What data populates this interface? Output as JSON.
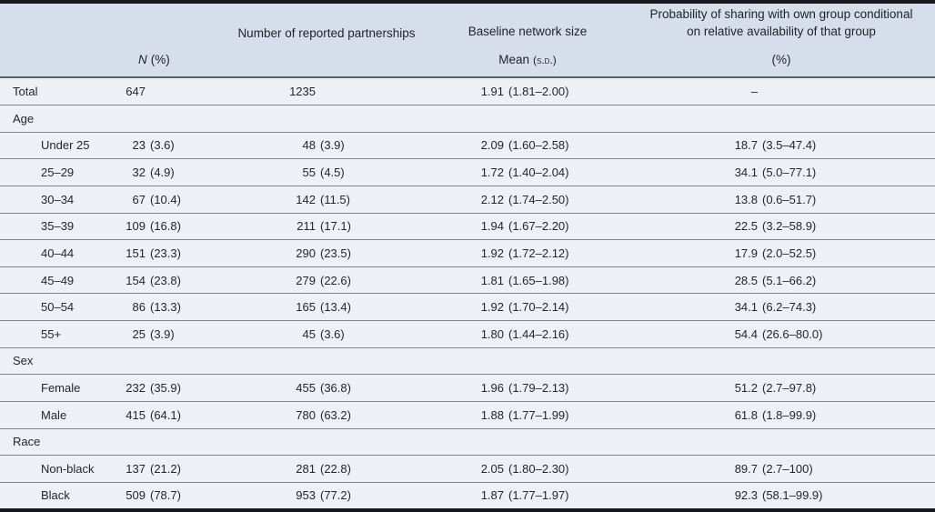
{
  "table": {
    "colors": {
      "header_bg": "#d7deeb",
      "body_bg": "#edf0f5",
      "heavy_rule": "#15171c",
      "row_rule": "#7c8590"
    },
    "header": {
      "col_n": {
        "label": "N",
        "units": "(%)"
      },
      "col_partnerships": {
        "line1": "Number of reported partnerships"
      },
      "col_network": {
        "line1": "Baseline network size",
        "mean_label": "Mean",
        "sd_label": "(s.d.)"
      },
      "col_probability": {
        "line1": "Probability of sharing with own group conditional",
        "line2": "on relative availability of that group",
        "units": "(%)"
      }
    },
    "rows": [
      {
        "type": "data",
        "indent": false,
        "label": "Total",
        "n": "647",
        "n_pct": "",
        "partnerships": "1235",
        "partnerships_pct": "",
        "mean": "1.91",
        "mean_ci": "(1.81–2.00)",
        "prob": "–",
        "prob_ci": ""
      },
      {
        "type": "section",
        "label": "Age"
      },
      {
        "type": "data",
        "indent": true,
        "label": "Under 25",
        "n": "23",
        "n_pct": "(3.6)",
        "partnerships": "48",
        "partnerships_pct": "(3.9)",
        "mean": "2.09",
        "mean_ci": "(1.60–2.58)",
        "prob": "18.7",
        "prob_ci": "(3.5–47.4)"
      },
      {
        "type": "data",
        "indent": true,
        "label": "25–29",
        "n": "32",
        "n_pct": "(4.9)",
        "partnerships": "55",
        "partnerships_pct": "(4.5)",
        "mean": "1.72",
        "mean_ci": "(1.40–2.04)",
        "prob": "34.1",
        "prob_ci": "(5.0–77.1)"
      },
      {
        "type": "data",
        "indent": true,
        "label": "30–34",
        "n": "67",
        "n_pct": "(10.4)",
        "partnerships": "142",
        "partnerships_pct": "(11.5)",
        "mean": "2.12",
        "mean_ci": "(1.74–2.50)",
        "prob": "13.8",
        "prob_ci": "(0.6–51.7)"
      },
      {
        "type": "data",
        "indent": true,
        "label": "35–39",
        "n": "109",
        "n_pct": "(16.8)",
        "partnerships": "211",
        "partnerships_pct": "(17.1)",
        "mean": "1.94",
        "mean_ci": "(1.67–2.20)",
        "prob": "22.5",
        "prob_ci": "(3.2–58.9)"
      },
      {
        "type": "data",
        "indent": true,
        "label": "40–44",
        "n": "151",
        "n_pct": "(23.3)",
        "partnerships": "290",
        "partnerships_pct": "(23.5)",
        "mean": "1.92",
        "mean_ci": "(1.72–2.12)",
        "prob": "17.9",
        "prob_ci": "(2.0–52.5)"
      },
      {
        "type": "data",
        "indent": true,
        "label": "45–49",
        "n": "154",
        "n_pct": "(23.8)",
        "partnerships": "279",
        "partnerships_pct": "(22.6)",
        "mean": "1.81",
        "mean_ci": "(1.65–1.98)",
        "prob": "28.5",
        "prob_ci": "(5.1–66.2)"
      },
      {
        "type": "data",
        "indent": true,
        "label": "50–54",
        "n": "86",
        "n_pct": "(13.3)",
        "partnerships": "165",
        "partnerships_pct": "(13.4)",
        "mean": "1.92",
        "mean_ci": "(1.70–2.14)",
        "prob": "34.1",
        "prob_ci": "(6.2–74.3)"
      },
      {
        "type": "data",
        "indent": true,
        "label": "55+",
        "n": "25",
        "n_pct": "(3.9)",
        "partnerships": "45",
        "partnerships_pct": "(3.6)",
        "mean": "1.80",
        "mean_ci": "(1.44–2.16)",
        "prob": "54.4",
        "prob_ci": "(26.6–80.0)"
      },
      {
        "type": "section",
        "label": "Sex"
      },
      {
        "type": "data",
        "indent": true,
        "label": "Female",
        "n": "232",
        "n_pct": "(35.9)",
        "partnerships": "455",
        "partnerships_pct": "(36.8)",
        "mean": "1.96",
        "mean_ci": "(1.79–2.13)",
        "prob": "51.2",
        "prob_ci": "(2.7–97.8)"
      },
      {
        "type": "data",
        "indent": true,
        "label": "Male",
        "n": "415",
        "n_pct": "(64.1)",
        "partnerships": "780",
        "partnerships_pct": "(63.2)",
        "mean": "1.88",
        "mean_ci": "(1.77–1.99)",
        "prob": "61.8",
        "prob_ci": "(1.8–99.9)"
      },
      {
        "type": "section",
        "label": "Race"
      },
      {
        "type": "data",
        "indent": true,
        "label": "Non-black",
        "n": "137",
        "n_pct": "(21.2)",
        "partnerships": "281",
        "partnerships_pct": "(22.8)",
        "mean": "2.05",
        "mean_ci": "(1.80–2.30)",
        "prob": "89.7",
        "prob_ci": "(2.7–100)"
      },
      {
        "type": "data",
        "indent": true,
        "label": "Black",
        "n": "509",
        "n_pct": "(78.7)",
        "partnerships": "953",
        "partnerships_pct": "(77.2)",
        "mean": "1.87",
        "mean_ci": "(1.77–1.97)",
        "prob": "92.3",
        "prob_ci": "(58.1–99.9)"
      }
    ]
  }
}
